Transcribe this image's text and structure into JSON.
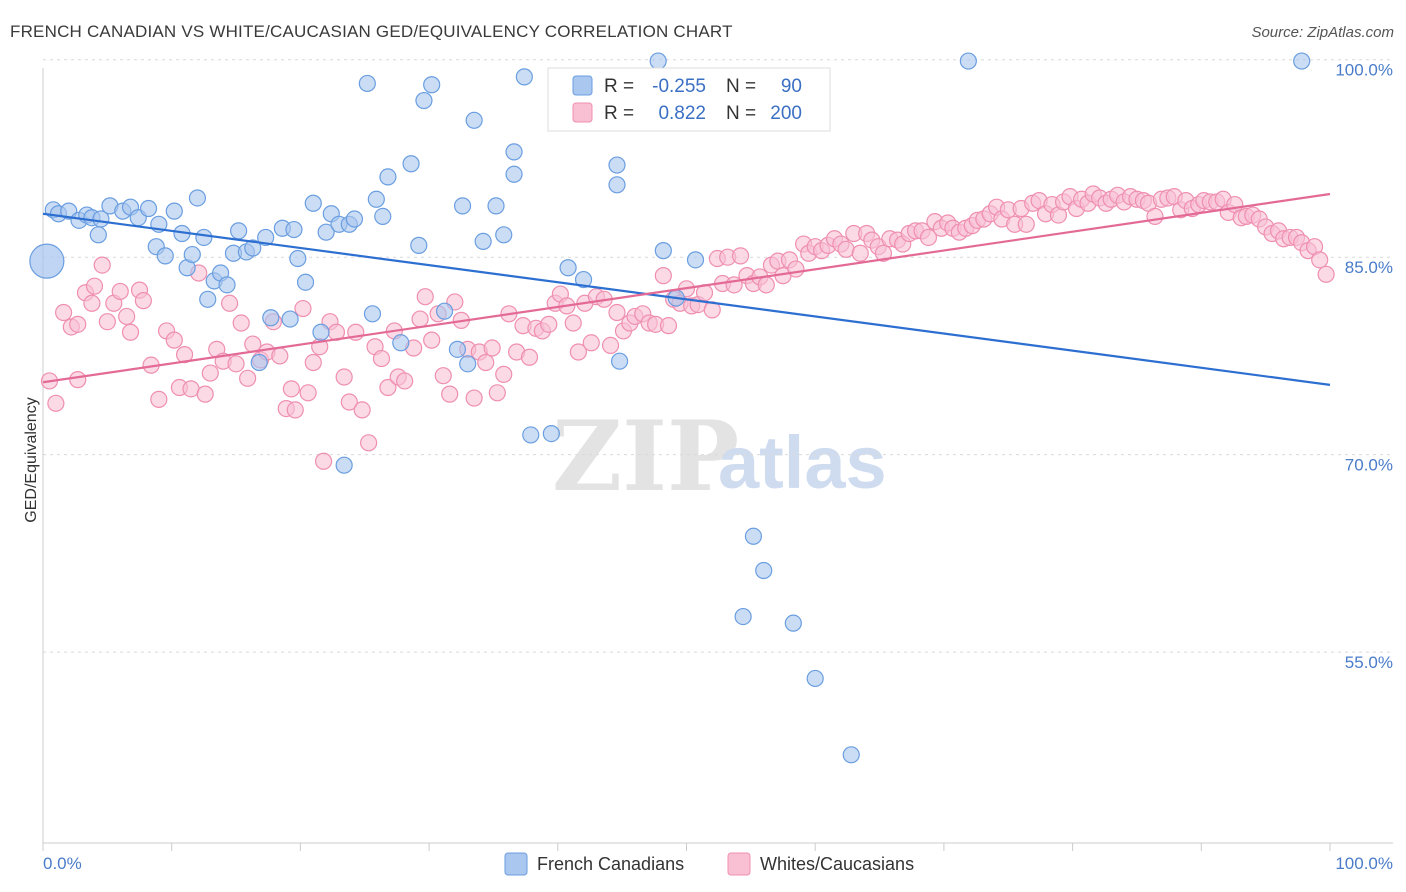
{
  "title": "FRENCH CANADIAN VS WHITE/CAUCASIAN GED/EQUIVALENCY CORRELATION CHART",
  "source": "Source: ZipAtlas.com",
  "watermark": {
    "zip": "ZIP",
    "atlas": "atlas"
  },
  "chart_data": {
    "type": "scatter",
    "ylabel": "GED/Equivalency",
    "xlim": [
      0,
      100
    ],
    "ylim": [
      40.5,
      101.5
    ],
    "x_tick_labels": [
      "0.0%",
      "100.0%"
    ],
    "y_ticks": [
      {
        "value": 100,
        "label": "100.0%"
      },
      {
        "value": 85,
        "label": "85.0%"
      },
      {
        "value": 70,
        "label": "70.0%"
      },
      {
        "value": 55,
        "label": "55.0%"
      }
    ],
    "grid": "horizontal dashed",
    "legend": {
      "placement": "top-center",
      "entries": [
        {
          "r_label": "R =",
          "r_value": "-0.255",
          "n_label": "N =",
          "n_value": "90"
        },
        {
          "r_label": "R =",
          "r_value": "0.822",
          "n_label": "N =",
          "n_value": "200"
        }
      ]
    },
    "series": [
      {
        "name": "French Canadians",
        "color": "#a9c7ef",
        "stroke": "#6a9ee0",
        "trend_color": "#2d6fd1",
        "trend": [
          [
            0,
            88.3
          ],
          [
            100,
            75.3
          ]
        ],
        "points": [
          [
            0.8,
            88.6
          ],
          [
            1.2,
            88.3
          ],
          [
            2.0,
            88.5
          ],
          [
            2.8,
            87.8
          ],
          [
            3.4,
            88.2
          ],
          [
            3.8,
            88.0
          ],
          [
            4.5,
            87.9
          ],
          [
            5.2,
            88.9
          ],
          [
            6.2,
            88.5
          ],
          [
            6.8,
            88.8
          ],
          [
            7.4,
            88.0
          ],
          [
            8.2,
            88.7
          ],
          [
            4.3,
            86.7
          ],
          [
            8.8,
            85.8
          ],
          [
            9.0,
            87.5
          ],
          [
            9.5,
            85.1
          ],
          [
            10.2,
            88.5
          ],
          [
            10.8,
            86.8
          ],
          [
            11.2,
            84.2
          ],
          [
            11.6,
            85.2
          ],
          [
            12.0,
            89.5
          ],
          [
            12.5,
            86.5
          ],
          [
            12.8,
            81.8
          ],
          [
            13.3,
            83.2
          ],
          [
            13.8,
            83.8
          ],
          [
            14.3,
            82.9
          ],
          [
            14.8,
            85.3
          ],
          [
            15.2,
            87.0
          ],
          [
            15.8,
            85.4
          ],
          [
            16.3,
            85.7
          ],
          [
            16.8,
            77.0
          ],
          [
            17.3,
            86.5
          ],
          [
            17.7,
            80.4
          ],
          [
            18.6,
            87.2
          ],
          [
            19.2,
            80.3
          ],
          [
            19.5,
            87.1
          ],
          [
            19.8,
            84.9
          ],
          [
            20.4,
            83.1
          ],
          [
            21.0,
            89.1
          ],
          [
            21.6,
            79.3
          ],
          [
            22.0,
            86.9
          ],
          [
            22.4,
            88.3
          ],
          [
            23.0,
            87.5
          ],
          [
            23.4,
            69.2
          ],
          [
            23.8,
            87.5
          ],
          [
            24.2,
            87.9
          ],
          [
            25.2,
            98.2
          ],
          [
            25.6,
            80.7
          ],
          [
            25.9,
            89.4
          ],
          [
            26.4,
            88.1
          ],
          [
            26.8,
            91.1
          ],
          [
            27.8,
            78.5
          ],
          [
            28.6,
            92.1
          ],
          [
            29.2,
            85.9
          ],
          [
            29.6,
            96.9
          ],
          [
            30.2,
            98.1
          ],
          [
            31.2,
            80.9
          ],
          [
            32.2,
            78.0
          ],
          [
            32.6,
            88.9
          ],
          [
            33.0,
            76.9
          ],
          [
            33.5,
            95.4
          ],
          [
            34.2,
            86.2
          ],
          [
            35.2,
            88.9
          ],
          [
            35.8,
            86.7
          ],
          [
            36.6,
            93.0
          ],
          [
            36.6,
            91.3
          ],
          [
            37.4,
            98.7
          ],
          [
            37.9,
            71.5
          ],
          [
            39.5,
            71.6
          ],
          [
            40.8,
            84.2
          ],
          [
            42.0,
            83.3
          ],
          [
            44.6,
            92.0
          ],
          [
            44.6,
            90.5
          ],
          [
            44.8,
            77.1
          ],
          [
            47.8,
            99.9
          ],
          [
            48.2,
            85.5
          ],
          [
            49.2,
            81.9
          ],
          [
            50.7,
            84.8
          ],
          [
            55.2,
            63.8
          ],
          [
            56.0,
            61.2
          ],
          [
            54.4,
            57.7
          ],
          [
            58.3,
            57.2
          ],
          [
            60.0,
            53.0
          ],
          [
            62.8,
            47.2
          ],
          [
            71.9,
            99.9
          ],
          [
            97.8,
            99.9
          ]
        ],
        "large_point": [
          0.3,
          84.7
        ]
      },
      {
        "name": "Whites/Caucasians",
        "color": "#f9c0d3",
        "stroke": "#ef8fb0",
        "trend_color": "#e36a95",
        "trend": [
          [
            0,
            75.5
          ],
          [
            100,
            89.8
          ]
        ],
        "points": [
          [
            0.5,
            75.6
          ],
          [
            1.0,
            73.9
          ],
          [
            1.6,
            80.8
          ],
          [
            2.2,
            79.7
          ],
          [
            2.7,
            79.9
          ],
          [
            2.7,
            75.7
          ],
          [
            3.3,
            82.3
          ],
          [
            3.8,
            81.5
          ],
          [
            4.0,
            82.8
          ],
          [
            4.6,
            84.4
          ],
          [
            5.0,
            80.1
          ],
          [
            5.5,
            81.5
          ],
          [
            6.0,
            82.4
          ],
          [
            6.5,
            80.5
          ],
          [
            6.8,
            79.3
          ],
          [
            7.5,
            82.5
          ],
          [
            7.8,
            81.7
          ],
          [
            8.4,
            76.8
          ],
          [
            9.0,
            74.2
          ],
          [
            9.6,
            79.4
          ],
          [
            10.2,
            78.7
          ],
          [
            10.6,
            75.1
          ],
          [
            11.0,
            77.6
          ],
          [
            11.5,
            75.0
          ],
          [
            12.1,
            83.8
          ],
          [
            12.6,
            74.6
          ],
          [
            13.0,
            76.2
          ],
          [
            13.5,
            78.0
          ],
          [
            14.0,
            77.1
          ],
          [
            14.5,
            81.5
          ],
          [
            15.0,
            76.9
          ],
          [
            15.4,
            80.0
          ],
          [
            15.9,
            75.8
          ],
          [
            16.3,
            78.4
          ],
          [
            16.9,
            77.2
          ],
          [
            17.4,
            77.8
          ],
          [
            17.9,
            80.1
          ],
          [
            18.4,
            77.5
          ],
          [
            18.9,
            73.5
          ],
          [
            19.3,
            75.0
          ],
          [
            19.6,
            73.4
          ],
          [
            20.2,
            81.1
          ],
          [
            20.6,
            74.7
          ],
          [
            21.0,
            77.0
          ],
          [
            21.5,
            78.2
          ],
          [
            21.8,
            69.5
          ],
          [
            22.3,
            80.1
          ],
          [
            22.8,
            79.3
          ],
          [
            23.4,
            75.9
          ],
          [
            23.8,
            74.0
          ],
          [
            24.3,
            79.3
          ],
          [
            24.8,
            73.4
          ],
          [
            25.3,
            70.9
          ],
          [
            25.8,
            78.2
          ],
          [
            26.3,
            77.3
          ],
          [
            26.8,
            75.1
          ],
          [
            27.3,
            79.4
          ],
          [
            27.6,
            75.9
          ],
          [
            28.1,
            75.6
          ],
          [
            28.8,
            78.1
          ],
          [
            29.3,
            80.3
          ],
          [
            29.7,
            82.0
          ],
          [
            30.2,
            78.7
          ],
          [
            30.7,
            80.7
          ],
          [
            31.1,
            76.0
          ],
          [
            31.6,
            74.6
          ],
          [
            32.0,
            81.6
          ],
          [
            32.5,
            80.2
          ],
          [
            33.0,
            78.0
          ],
          [
            33.5,
            74.3
          ],
          [
            33.9,
            77.8
          ],
          [
            34.4,
            77.0
          ],
          [
            34.9,
            78.1
          ],
          [
            35.3,
            74.7
          ],
          [
            35.8,
            76.1
          ],
          [
            36.2,
            80.7
          ],
          [
            36.8,
            77.8
          ],
          [
            37.3,
            79.8
          ],
          [
            37.8,
            77.4
          ],
          [
            38.3,
            79.6
          ],
          [
            38.8,
            79.4
          ],
          [
            39.3,
            79.9
          ],
          [
            39.8,
            81.5
          ],
          [
            40.2,
            82.2
          ],
          [
            40.7,
            81.3
          ],
          [
            41.2,
            80.0
          ],
          [
            41.6,
            77.8
          ],
          [
            42.1,
            81.5
          ],
          [
            42.6,
            78.5
          ],
          [
            43.0,
            82.0
          ],
          [
            43.6,
            81.8
          ],
          [
            44.1,
            78.3
          ],
          [
            44.6,
            80.8
          ],
          [
            45.1,
            79.4
          ],
          [
            45.6,
            80.0
          ],
          [
            46.0,
            80.5
          ],
          [
            46.6,
            80.7
          ],
          [
            47.1,
            80.0
          ],
          [
            47.6,
            79.9
          ],
          [
            48.2,
            83.6
          ],
          [
            48.6,
            79.8
          ],
          [
            49.0,
            81.8
          ],
          [
            49.5,
            81.5
          ],
          [
            50.0,
            82.6
          ],
          [
            50.4,
            81.3
          ],
          [
            50.9,
            81.4
          ],
          [
            51.4,
            82.3
          ],
          [
            52.0,
            81.0
          ],
          [
            52.4,
            84.9
          ],
          [
            52.8,
            83.0
          ],
          [
            53.2,
            85.0
          ],
          [
            53.7,
            82.9
          ],
          [
            54.2,
            85.1
          ],
          [
            54.7,
            83.6
          ],
          [
            55.2,
            83.0
          ],
          [
            55.7,
            83.5
          ],
          [
            56.2,
            82.9
          ],
          [
            56.6,
            84.4
          ],
          [
            57.1,
            84.7
          ],
          [
            57.5,
            83.6
          ],
          [
            58.0,
            84.8
          ],
          [
            58.5,
            84.1
          ],
          [
            59.1,
            86.0
          ],
          [
            59.5,
            85.3
          ],
          [
            60.0,
            85.8
          ],
          [
            60.5,
            85.5
          ],
          [
            61.0,
            85.9
          ],
          [
            61.5,
            86.4
          ],
          [
            62.0,
            86.0
          ],
          [
            62.4,
            85.6
          ],
          [
            63.0,
            86.8
          ],
          [
            63.5,
            85.3
          ],
          [
            64.0,
            86.8
          ],
          [
            64.4,
            86.3
          ],
          [
            64.9,
            85.8
          ],
          [
            65.3,
            85.3
          ],
          [
            65.8,
            86.4
          ],
          [
            66.4,
            86.3
          ],
          [
            66.8,
            86.0
          ],
          [
            67.3,
            86.8
          ],
          [
            67.8,
            87.0
          ],
          [
            68.3,
            87.0
          ],
          [
            68.8,
            86.5
          ],
          [
            69.3,
            87.7
          ],
          [
            69.8,
            87.2
          ],
          [
            70.3,
            87.6
          ],
          [
            70.7,
            87.2
          ],
          [
            71.2,
            86.9
          ],
          [
            71.7,
            87.2
          ],
          [
            72.2,
            87.4
          ],
          [
            72.6,
            87.8
          ],
          [
            73.1,
            87.9
          ],
          [
            73.6,
            88.3
          ],
          [
            74.1,
            88.8
          ],
          [
            74.5,
            87.9
          ],
          [
            75.0,
            88.6
          ],
          [
            75.5,
            87.5
          ],
          [
            76.0,
            88.7
          ],
          [
            76.4,
            87.5
          ],
          [
            76.9,
            89.1
          ],
          [
            77.4,
            89.3
          ],
          [
            77.9,
            88.3
          ],
          [
            78.4,
            89.0
          ],
          [
            78.9,
            88.2
          ],
          [
            79.3,
            89.2
          ],
          [
            79.8,
            89.6
          ],
          [
            80.3,
            88.7
          ],
          [
            80.7,
            89.4
          ],
          [
            81.2,
            89.1
          ],
          [
            81.6,
            89.8
          ],
          [
            82.1,
            89.5
          ],
          [
            82.6,
            89.1
          ],
          [
            83.0,
            89.4
          ],
          [
            83.5,
            89.7
          ],
          [
            84.0,
            89.2
          ],
          [
            84.5,
            89.6
          ],
          [
            85.0,
            89.4
          ],
          [
            85.5,
            89.3
          ],
          [
            85.9,
            89.1
          ],
          [
            86.4,
            88.1
          ],
          [
            86.9,
            89.4
          ],
          [
            87.4,
            89.5
          ],
          [
            87.9,
            89.6
          ],
          [
            88.4,
            88.6
          ],
          [
            88.8,
            89.3
          ],
          [
            89.3,
            88.7
          ],
          [
            89.8,
            89.0
          ],
          [
            90.2,
            89.3
          ],
          [
            90.7,
            89.2
          ],
          [
            91.2,
            89.2
          ],
          [
            91.7,
            89.4
          ],
          [
            92.1,
            88.4
          ],
          [
            92.6,
            89.0
          ],
          [
            93.1,
            88.0
          ],
          [
            93.5,
            88.1
          ],
          [
            94.0,
            88.2
          ],
          [
            94.5,
            87.9
          ],
          [
            95.0,
            87.3
          ],
          [
            95.5,
            86.8
          ],
          [
            96.0,
            87.0
          ],
          [
            96.4,
            86.4
          ],
          [
            96.9,
            86.5
          ],
          [
            97.4,
            86.5
          ],
          [
            97.8,
            86.1
          ],
          [
            98.3,
            85.5
          ],
          [
            98.8,
            85.8
          ],
          [
            99.2,
            84.8
          ],
          [
            99.7,
            83.7
          ]
        ]
      }
    ]
  }
}
